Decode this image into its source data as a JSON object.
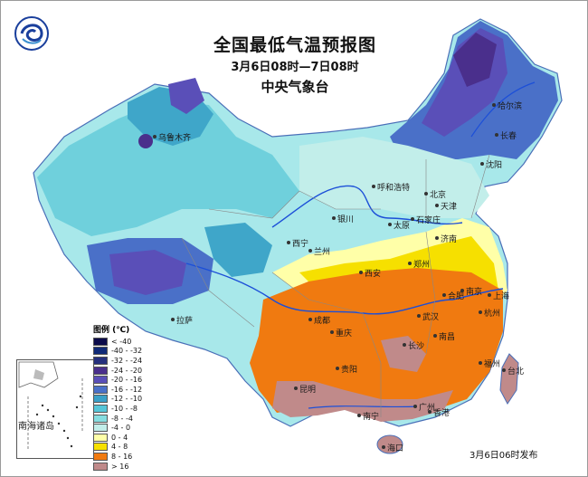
{
  "title": "全国最低气温预报图",
  "time_range": "3月6日08时—7日08时",
  "organization": "中央气象台",
  "issue_time": "3月6日06时发布",
  "legend": {
    "title": "图例 (℃)",
    "items": [
      {
        "label": "< -40",
        "color": "#0b0b4a"
      },
      {
        "label": "-40 - -32",
        "color": "#102a78"
      },
      {
        "label": "-32 - -24",
        "color": "#26307d"
      },
      {
        "label": "-24 - -20",
        "color": "#4a2f8c"
      },
      {
        "label": "-20 - -16",
        "color": "#5a4fb8"
      },
      {
        "label": "-16 - -12",
        "color": "#4a70c8"
      },
      {
        "label": "-12 - -10",
        "color": "#3aa0c8"
      },
      {
        "label": "-10 - -8",
        "color": "#56c6d8"
      },
      {
        "label": "-8 - -4",
        "color": "#86dde0"
      },
      {
        "label": "-4 - 0",
        "color": "#c2eeea"
      },
      {
        "label": "0 - 4",
        "color": "#ffffa8"
      },
      {
        "label": "4 - 8",
        "color": "#f6e000"
      },
      {
        "label": "8 - 16",
        "color": "#f07a10"
      },
      {
        "label": "> 16",
        "color": "#c08a8a"
      }
    ]
  },
  "inset_label": "南海诸岛",
  "cities": [
    {
      "name": "乌鲁木齐",
      "key": "urumqi"
    },
    {
      "name": "哈尔滨",
      "key": "harbin"
    },
    {
      "name": "长春",
      "key": "changchun"
    },
    {
      "name": "沈阳",
      "key": "shenyang"
    },
    {
      "name": "呼和浩特",
      "key": "hohhot"
    },
    {
      "name": "北京",
      "key": "beijing"
    },
    {
      "name": "天津",
      "key": "tianjin"
    },
    {
      "name": "银川",
      "key": "yinchuan"
    },
    {
      "name": "太原",
      "key": "taiyuan"
    },
    {
      "name": "石家庄",
      "key": "shijiazhuang"
    },
    {
      "name": "济南",
      "key": "jinan"
    },
    {
      "name": "西宁",
      "key": "xining"
    },
    {
      "name": "兰州",
      "key": "lanzhou"
    },
    {
      "name": "郑州",
      "key": "zhengzhou"
    },
    {
      "name": "西安",
      "key": "xian"
    },
    {
      "name": "合肥",
      "key": "hefei"
    },
    {
      "name": "南京",
      "key": "nanjing"
    },
    {
      "name": "上海",
      "key": "shanghai"
    },
    {
      "name": "拉萨",
      "key": "lhasa"
    },
    {
      "name": "成都",
      "key": "chengdu"
    },
    {
      "name": "武汉",
      "key": "wuhan"
    },
    {
      "name": "杭州",
      "key": "hangzhou"
    },
    {
      "name": "重庆",
      "key": "chongqing"
    },
    {
      "name": "南昌",
      "key": "nanchang"
    },
    {
      "name": "长沙",
      "key": "changsha"
    },
    {
      "name": "贵阳",
      "key": "guiyang"
    },
    {
      "name": "福州",
      "key": "fuzhou"
    },
    {
      "name": "昆明",
      "key": "kunming"
    },
    {
      "name": "台北",
      "key": "taipei"
    },
    {
      "name": "南宁",
      "key": "nanning"
    },
    {
      "name": "广州",
      "key": "guangzhou"
    },
    {
      "name": "香港",
      "key": "hongkong"
    },
    {
      "name": "海口",
      "key": "haikou"
    }
  ]
}
